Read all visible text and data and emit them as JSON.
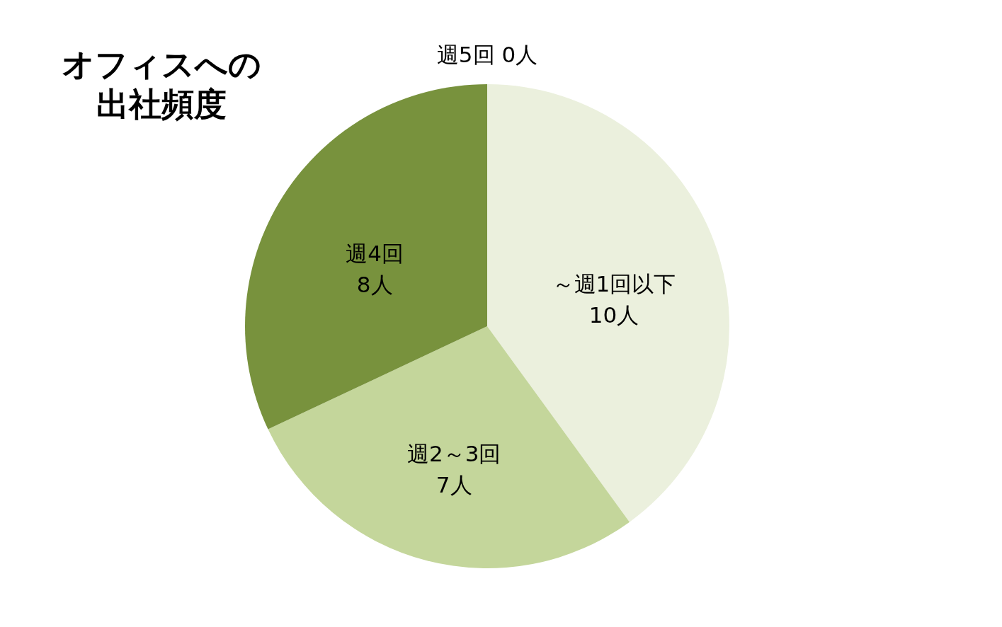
{
  "chart_data": {
    "type": "pie",
    "title": "オフィスへの出社頻度",
    "categories": [
      "～週1回以下",
      "週2～3回",
      "週4回",
      "週5回"
    ],
    "values": [
      10,
      7,
      8,
      0
    ],
    "value_labels": [
      "10人",
      "7人",
      "8人",
      "0人"
    ],
    "colors": [
      "#ebf0dd",
      "#c4d69b",
      "#78923d",
      "#4f6228"
    ]
  }
}
